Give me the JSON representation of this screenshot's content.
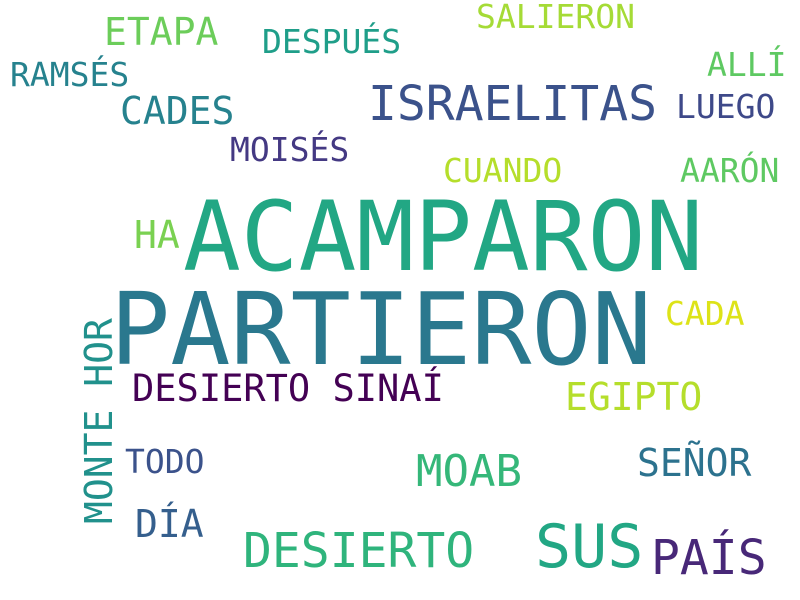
{
  "words": [
    {
      "id": "acamparon",
      "text": "ACAMPARON",
      "color": "#22a784"
    },
    {
      "id": "partieron",
      "text": "PARTIERON",
      "color": "#2a788e"
    },
    {
      "id": "israelitas",
      "text": "ISRAELITAS",
      "color": "#3b528b"
    },
    {
      "id": "desierto-sinai",
      "text": "DESIERTO SINAÍ",
      "color": "#440154"
    },
    {
      "id": "monte-hor",
      "text": "MONTE HOR",
      "color": "#21918c"
    },
    {
      "id": "desierto",
      "text": "DESIERTO",
      "color": "#2fb47c"
    },
    {
      "id": "sus",
      "text": "SUS",
      "color": "#22a784"
    },
    {
      "id": "pais",
      "text": "PAÍS",
      "color": "#482878"
    },
    {
      "id": "etapa",
      "text": "ETAPA",
      "color": "#6ccd5a"
    },
    {
      "id": "despues",
      "text": "DESPUÉS",
      "color": "#1f9e89"
    },
    {
      "id": "salieron",
      "text": "SALIERON",
      "color": "#a5db36"
    },
    {
      "id": "ramses",
      "text": "RAMSÉS",
      "color": "#26828e"
    },
    {
      "id": "alli",
      "text": "ALLÍ",
      "color": "#5ec962"
    },
    {
      "id": "cades",
      "text": "CADES",
      "color": "#26828e"
    },
    {
      "id": "luego",
      "text": "LUEGO",
      "color": "#3e4989"
    },
    {
      "id": "moises",
      "text": "MOISÉS",
      "color": "#443983"
    },
    {
      "id": "cuando",
      "text": "CUANDO",
      "color": "#b5de2b"
    },
    {
      "id": "aaron",
      "text": "AARÓN",
      "color": "#5ec962"
    },
    {
      "id": "ha",
      "text": "HA",
      "color": "#7ad151"
    },
    {
      "id": "cada",
      "text": "CADA",
      "color": "#dde318"
    },
    {
      "id": "egipto",
      "text": "EGIPTO",
      "color": "#b5de2b"
    },
    {
      "id": "todo",
      "text": "TODO",
      "color": "#3b528b"
    },
    {
      "id": "moab",
      "text": "MOAB",
      "color": "#35b779"
    },
    {
      "id": "senor",
      "text": "SEÑOR",
      "color": "#2c728e"
    },
    {
      "id": "dia",
      "text": "DÍA",
      "color": "#355f8d"
    }
  ]
}
